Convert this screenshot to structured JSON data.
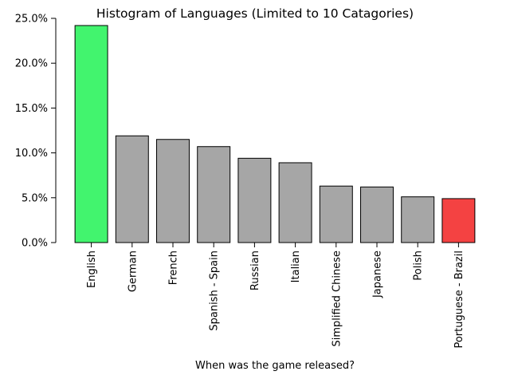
{
  "chart_data": {
    "type": "bar",
    "title": "Histogram of Languages (Limited to 10 Catagories)",
    "xlabel": "When was the game released?",
    "ylabel": "",
    "categories": [
      "English",
      "German",
      "French",
      "Spanish - Spain",
      "Russian",
      "Italian",
      "Simplified Chinese",
      "Japanese",
      "Polish",
      "Portuguese - Brazil"
    ],
    "values": [
      24.2,
      11.9,
      11.5,
      10.7,
      9.4,
      8.9,
      6.3,
      6.2,
      5.1,
      4.9
    ],
    "ylim": [
      0,
      25
    ],
    "yticks": [
      "0.0%",
      "5.0%",
      "10.0%",
      "15.0%",
      "20.0%",
      "25.0%"
    ],
    "ytick_values": [
      0,
      5,
      10,
      15,
      20,
      25
    ],
    "grid": false,
    "bar_colors": [
      "#42f46e",
      "#a6a6a6",
      "#a6a6a6",
      "#a6a6a6",
      "#a6a6a6",
      "#a6a6a6",
      "#a6a6a6",
      "#a6a6a6",
      "#a6a6a6",
      "#f44242"
    ],
    "edge_color": "#000000"
  }
}
